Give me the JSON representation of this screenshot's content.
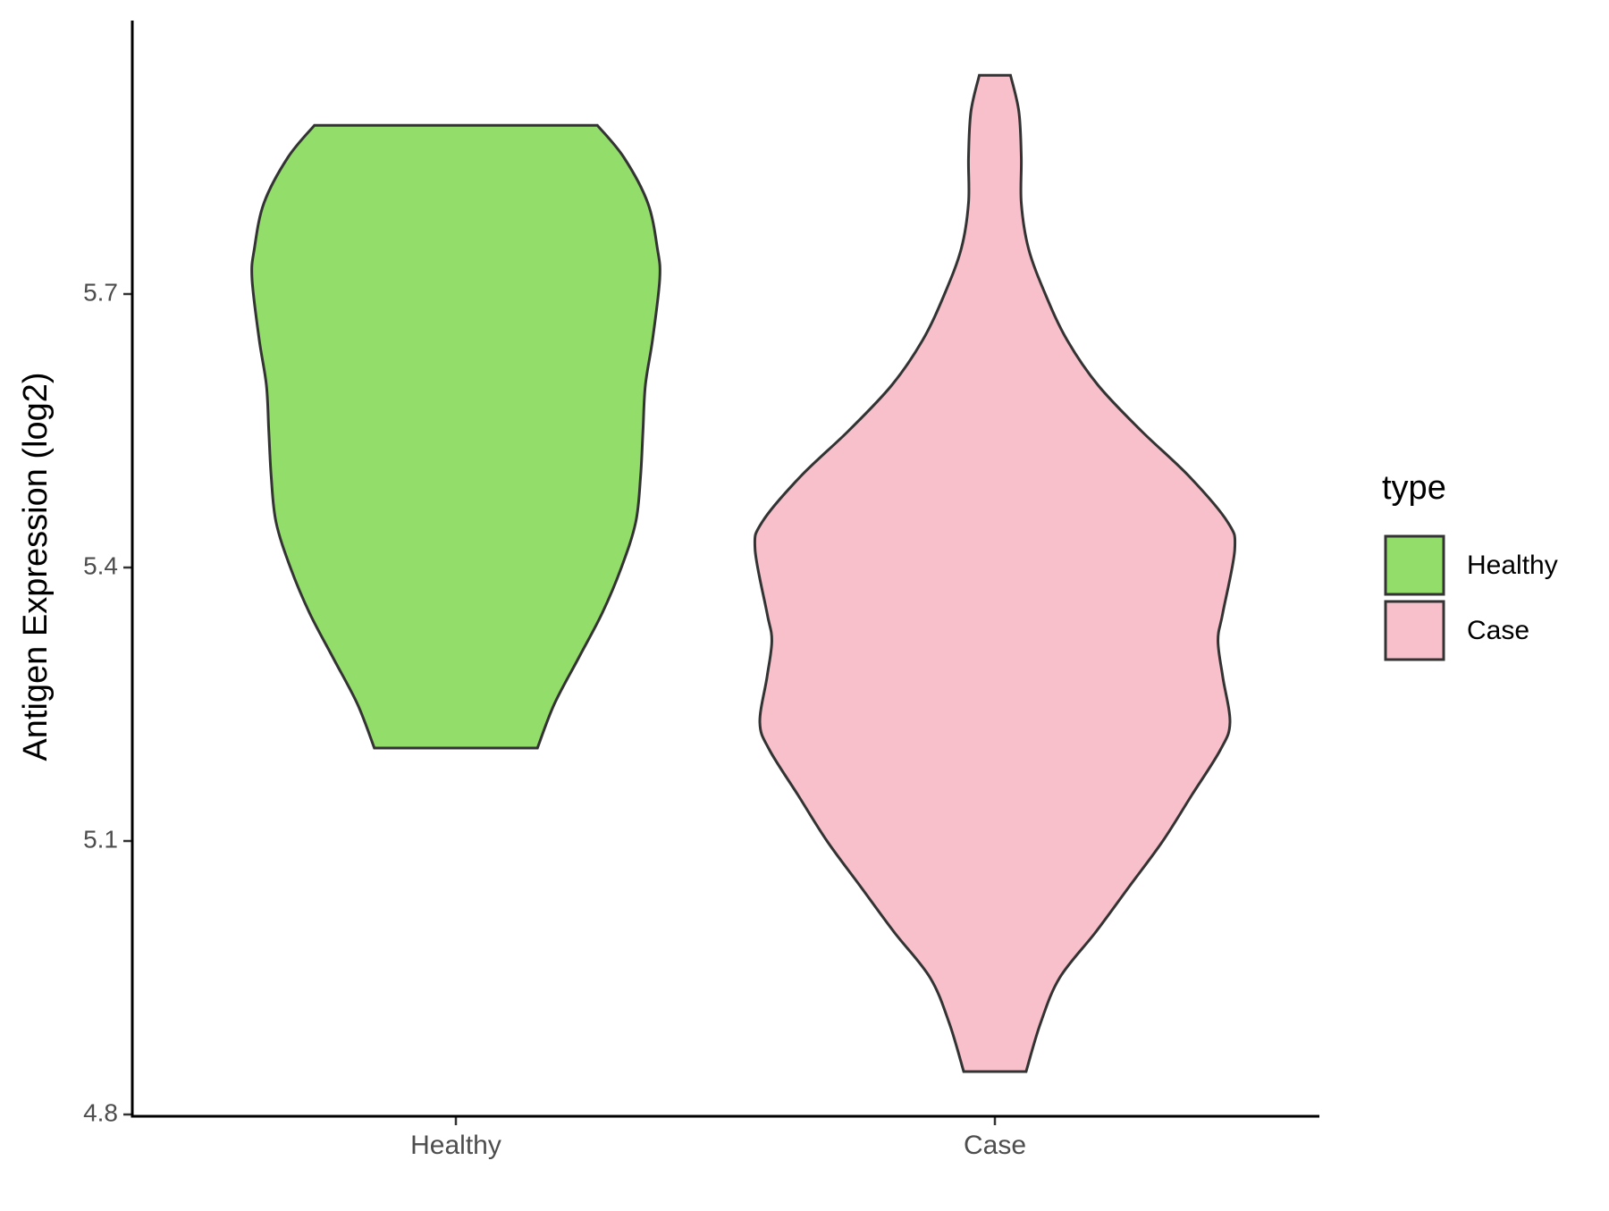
{
  "chart_data": {
    "type": "violin",
    "y_label": "Antigen Expression (log2)",
    "categories": [
      "Healthy",
      "Case"
    ],
    "legend_title": "type",
    "legend": "right",
    "ylim": [
      4.8,
      6.0
    ],
    "yticks": [
      4.8,
      5.1,
      5.4,
      5.7
    ],
    "series": [
      {
        "name": "Healthy",
        "color": "#93DD6A",
        "y": [
          5.202,
          5.25,
          5.3,
          5.35,
          5.4,
          5.45,
          5.5,
          5.55,
          5.6,
          5.65,
          5.717,
          5.75,
          5.8,
          5.85,
          5.885
        ],
        "density": [
          0.34,
          0.41,
          0.51,
          0.61,
          0.69,
          0.75,
          0.77,
          0.78,
          0.79,
          0.82,
          0.85,
          0.84,
          0.8,
          0.7,
          0.59
        ]
      },
      {
        "name": "Case",
        "color": "#F7C0CB",
        "y": [
          4.847,
          4.9,
          4.95,
          5.0,
          5.05,
          5.1,
          5.15,
          5.2,
          5.23,
          5.28,
          5.32,
          5.35,
          5.42,
          5.45,
          5.5,
          5.55,
          5.6,
          5.65,
          5.7,
          5.75,
          5.8,
          5.85,
          5.9,
          5.94
        ],
        "density": [
          0.13,
          0.19,
          0.27,
          0.42,
          0.56,
          0.7,
          0.82,
          0.94,
          0.98,
          0.95,
          0.93,
          0.95,
          1.0,
          0.97,
          0.81,
          0.61,
          0.43,
          0.3,
          0.21,
          0.14,
          0.11,
          0.11,
          0.1,
          0.065
        ]
      }
    ]
  }
}
